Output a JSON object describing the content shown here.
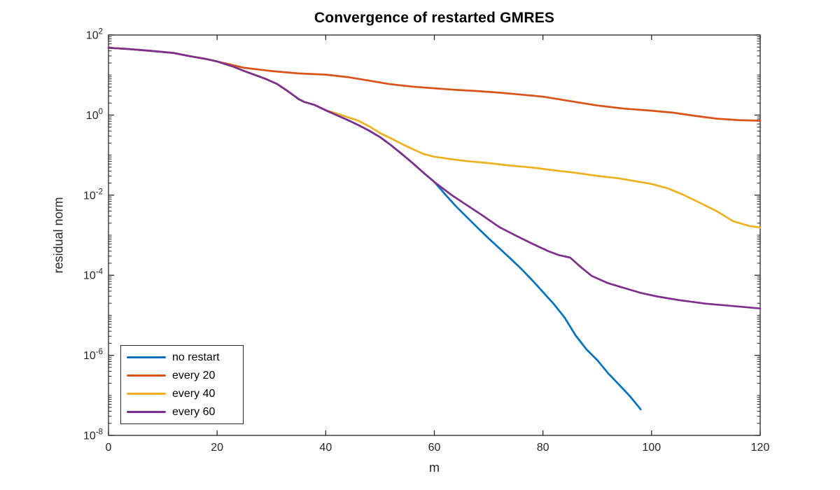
{
  "chart_data": {
    "type": "line",
    "title": "Convergence of restarted GMRES",
    "xlabel": "m",
    "ylabel": "residual norm",
    "grid": false,
    "legend_position": "bottom-left",
    "x_axis": {
      "min": 0,
      "max": 120,
      "ticks": [
        0,
        20,
        40,
        60,
        80,
        100,
        120
      ]
    },
    "y_axis": {
      "scale": "log",
      "min_exp": -8,
      "max_exp": 2,
      "tick_exponents": [
        2,
        0,
        -2,
        -4,
        -6,
        -8
      ],
      "tick_labels": [
        "10^2",
        "10^0",
        "10^-2",
        "10^-4",
        "10^-6",
        "10^-8"
      ]
    },
    "axis_color": "#262626",
    "series": [
      {
        "name": "no restart",
        "color": "#0072BD",
        "points_m_log10res": [
          [
            0,
            1.68
          ],
          [
            3,
            1.655
          ],
          [
            6,
            1.625
          ],
          [
            9,
            1.59
          ],
          [
            12,
            1.55
          ],
          [
            15,
            1.47
          ],
          [
            18,
            1.4
          ],
          [
            20,
            1.34
          ],
          [
            23,
            1.21
          ],
          [
            25,
            1.1
          ],
          [
            27,
            1.0
          ],
          [
            29,
            0.9
          ],
          [
            31,
            0.78
          ],
          [
            33,
            0.6
          ],
          [
            34,
            0.5
          ],
          [
            35,
            0.4
          ],
          [
            36,
            0.33
          ],
          [
            38,
            0.25
          ],
          [
            40,
            0.12
          ],
          [
            42,
            0.0
          ],
          [
            44,
            -0.12
          ],
          [
            46,
            -0.25
          ],
          [
            48,
            -0.39
          ],
          [
            50,
            -0.55
          ],
          [
            52,
            -0.75
          ],
          [
            54,
            -0.97
          ],
          [
            56,
            -1.2
          ],
          [
            58,
            -1.44
          ],
          [
            60,
            -1.67
          ],
          [
            62,
            -1.98
          ],
          [
            64,
            -2.28
          ],
          [
            66,
            -2.55
          ],
          [
            68,
            -2.82
          ],
          [
            70,
            -3.08
          ],
          [
            72,
            -3.33
          ],
          [
            74,
            -3.58
          ],
          [
            76,
            -3.84
          ],
          [
            78,
            -4.12
          ],
          [
            80,
            -4.42
          ],
          [
            82,
            -4.72
          ],
          [
            84,
            -5.06
          ],
          [
            86,
            -5.5
          ],
          [
            88,
            -5.85
          ],
          [
            90,
            -6.12
          ],
          [
            92,
            -6.45
          ],
          [
            94,
            -6.73
          ],
          [
            96,
            -7.02
          ],
          [
            98,
            -7.35
          ]
        ]
      },
      {
        "name": "every 20",
        "color": "#D95319",
        "points_m_log10res": [
          [
            0,
            1.68
          ],
          [
            3,
            1.655
          ],
          [
            6,
            1.625
          ],
          [
            9,
            1.59
          ],
          [
            12,
            1.55
          ],
          [
            15,
            1.47
          ],
          [
            18,
            1.4
          ],
          [
            20,
            1.34
          ],
          [
            25,
            1.18
          ],
          [
            30,
            1.1
          ],
          [
            35,
            1.04
          ],
          [
            40,
            1.01
          ],
          [
            44,
            0.95
          ],
          [
            48,
            0.86
          ],
          [
            52,
            0.77
          ],
          [
            56,
            0.71
          ],
          [
            60,
            0.67
          ],
          [
            64,
            0.63
          ],
          [
            68,
            0.6
          ],
          [
            72,
            0.56
          ],
          [
            76,
            0.51
          ],
          [
            80,
            0.46
          ],
          [
            85,
            0.35
          ],
          [
            90,
            0.24
          ],
          [
            95,
            0.16
          ],
          [
            100,
            0.11
          ],
          [
            104,
            0.06
          ],
          [
            108,
            -0.02
          ],
          [
            112,
            -0.09
          ],
          [
            116,
            -0.125
          ],
          [
            120,
            -0.14
          ]
        ]
      },
      {
        "name": "every 40",
        "color": "#EDB120",
        "points_m_log10res": [
          [
            0,
            1.68
          ],
          [
            3,
            1.655
          ],
          [
            6,
            1.625
          ],
          [
            9,
            1.59
          ],
          [
            12,
            1.55
          ],
          [
            15,
            1.47
          ],
          [
            18,
            1.4
          ],
          [
            20,
            1.34
          ],
          [
            23,
            1.21
          ],
          [
            25,
            1.1
          ],
          [
            27,
            1.0
          ],
          [
            29,
            0.9
          ],
          [
            31,
            0.78
          ],
          [
            33,
            0.6
          ],
          [
            34,
            0.5
          ],
          [
            35,
            0.4
          ],
          [
            36,
            0.33
          ],
          [
            38,
            0.25
          ],
          [
            40,
            0.12
          ],
          [
            42,
            0.04
          ],
          [
            44,
            -0.05
          ],
          [
            46,
            -0.14
          ],
          [
            48,
            -0.28
          ],
          [
            50,
            -0.45
          ],
          [
            52,
            -0.58
          ],
          [
            54,
            -0.72
          ],
          [
            56,
            -0.85
          ],
          [
            58,
            -0.97
          ],
          [
            60,
            -1.04
          ],
          [
            63,
            -1.1
          ],
          [
            66,
            -1.15
          ],
          [
            70,
            -1.2
          ],
          [
            74,
            -1.26
          ],
          [
            78,
            -1.31
          ],
          [
            82,
            -1.38
          ],
          [
            86,
            -1.44
          ],
          [
            90,
            -1.52
          ],
          [
            94,
            -1.58
          ],
          [
            97,
            -1.65
          ],
          [
            100,
            -1.72
          ],
          [
            103,
            -1.83
          ],
          [
            106,
            -2.0
          ],
          [
            109,
            -2.2
          ],
          [
            112,
            -2.4
          ],
          [
            115,
            -2.65
          ],
          [
            118,
            -2.77
          ],
          [
            120,
            -2.81
          ]
        ]
      },
      {
        "name": "every 60",
        "color": "#7E2F8E",
        "points_m_log10res": [
          [
            0,
            1.68
          ],
          [
            3,
            1.655
          ],
          [
            6,
            1.625
          ],
          [
            9,
            1.59
          ],
          [
            12,
            1.55
          ],
          [
            15,
            1.47
          ],
          [
            18,
            1.4
          ],
          [
            20,
            1.34
          ],
          [
            23,
            1.21
          ],
          [
            25,
            1.1
          ],
          [
            27,
            1.0
          ],
          [
            29,
            0.9
          ],
          [
            31,
            0.78
          ],
          [
            33,
            0.6
          ],
          [
            34,
            0.5
          ],
          [
            35,
            0.4
          ],
          [
            36,
            0.33
          ],
          [
            38,
            0.25
          ],
          [
            40,
            0.12
          ],
          [
            42,
            0.0
          ],
          [
            44,
            -0.12
          ],
          [
            46,
            -0.25
          ],
          [
            48,
            -0.39
          ],
          [
            50,
            -0.55
          ],
          [
            52,
            -0.75
          ],
          [
            54,
            -0.97
          ],
          [
            56,
            -1.2
          ],
          [
            58,
            -1.44
          ],
          [
            60,
            -1.67
          ],
          [
            63,
            -1.98
          ],
          [
            66,
            -2.25
          ],
          [
            69,
            -2.52
          ],
          [
            72,
            -2.8
          ],
          [
            75,
            -3.01
          ],
          [
            78,
            -3.21
          ],
          [
            81,
            -3.4
          ],
          [
            83,
            -3.5
          ],
          [
            85,
            -3.56
          ],
          [
            87,
            -3.8
          ],
          [
            89,
            -4.02
          ],
          [
            92,
            -4.2
          ],
          [
            95,
            -4.32
          ],
          [
            98,
            -4.44
          ],
          [
            101,
            -4.53
          ],
          [
            105,
            -4.62
          ],
          [
            110,
            -4.71
          ],
          [
            115,
            -4.77
          ],
          [
            120,
            -4.83
          ]
        ]
      }
    ]
  }
}
